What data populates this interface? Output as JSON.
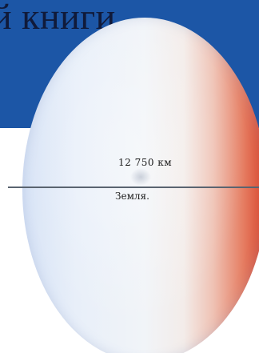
{
  "header": {
    "title": "й книги",
    "band_color": "#1c56a6"
  },
  "planet": {
    "name": "Земля.",
    "diameter_label": "12 750 км",
    "colors": {
      "body": "#e8eff9",
      "edge_right": "#d8432a"
    }
  }
}
